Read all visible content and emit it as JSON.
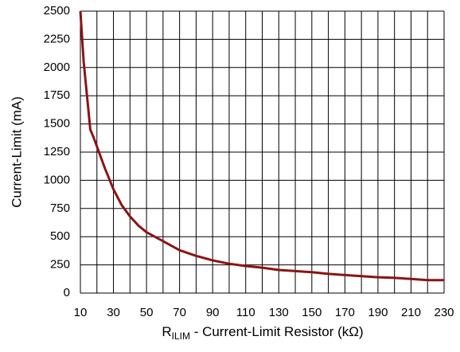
{
  "chart_data": {
    "type": "line",
    "ylabel": "Current-Limit (mA)",
    "xlabel": {
      "symbol": "R",
      "subscript": "ILIM",
      "text": " - Current-Limit Resistor (kΩ)"
    },
    "x": [
      10,
      12,
      14,
      16,
      18,
      20,
      25,
      30,
      35,
      40,
      45,
      50,
      60,
      70,
      80,
      90,
      100,
      110,
      120,
      130,
      140,
      150,
      160,
      170,
      180,
      190,
      200,
      210,
      220,
      230
    ],
    "series": [
      {
        "color": "#8b1414",
        "values": [
          2500,
          2050,
          1750,
          1450,
          1380,
          1300,
          1100,
          920,
          780,
          680,
          600,
          540,
          460,
          380,
          330,
          290,
          260,
          240,
          225,
          205,
          195,
          185,
          170,
          160,
          150,
          140,
          135,
          125,
          115,
          115
        ]
      }
    ],
    "xlim": [
      10,
      230
    ],
    "xticks": [
      10,
      30,
      50,
      70,
      90,
      110,
      130,
      150,
      170,
      190,
      210,
      230
    ],
    "x_minor_ticks": [
      20,
      40,
      60,
      80,
      100,
      120,
      140,
      160,
      180,
      200,
      220
    ],
    "ylim": [
      0,
      2500
    ],
    "yticks": [
      0,
      250,
      500,
      750,
      1000,
      1250,
      1500,
      1750,
      2000,
      2250,
      2500
    ],
    "grid": true
  }
}
